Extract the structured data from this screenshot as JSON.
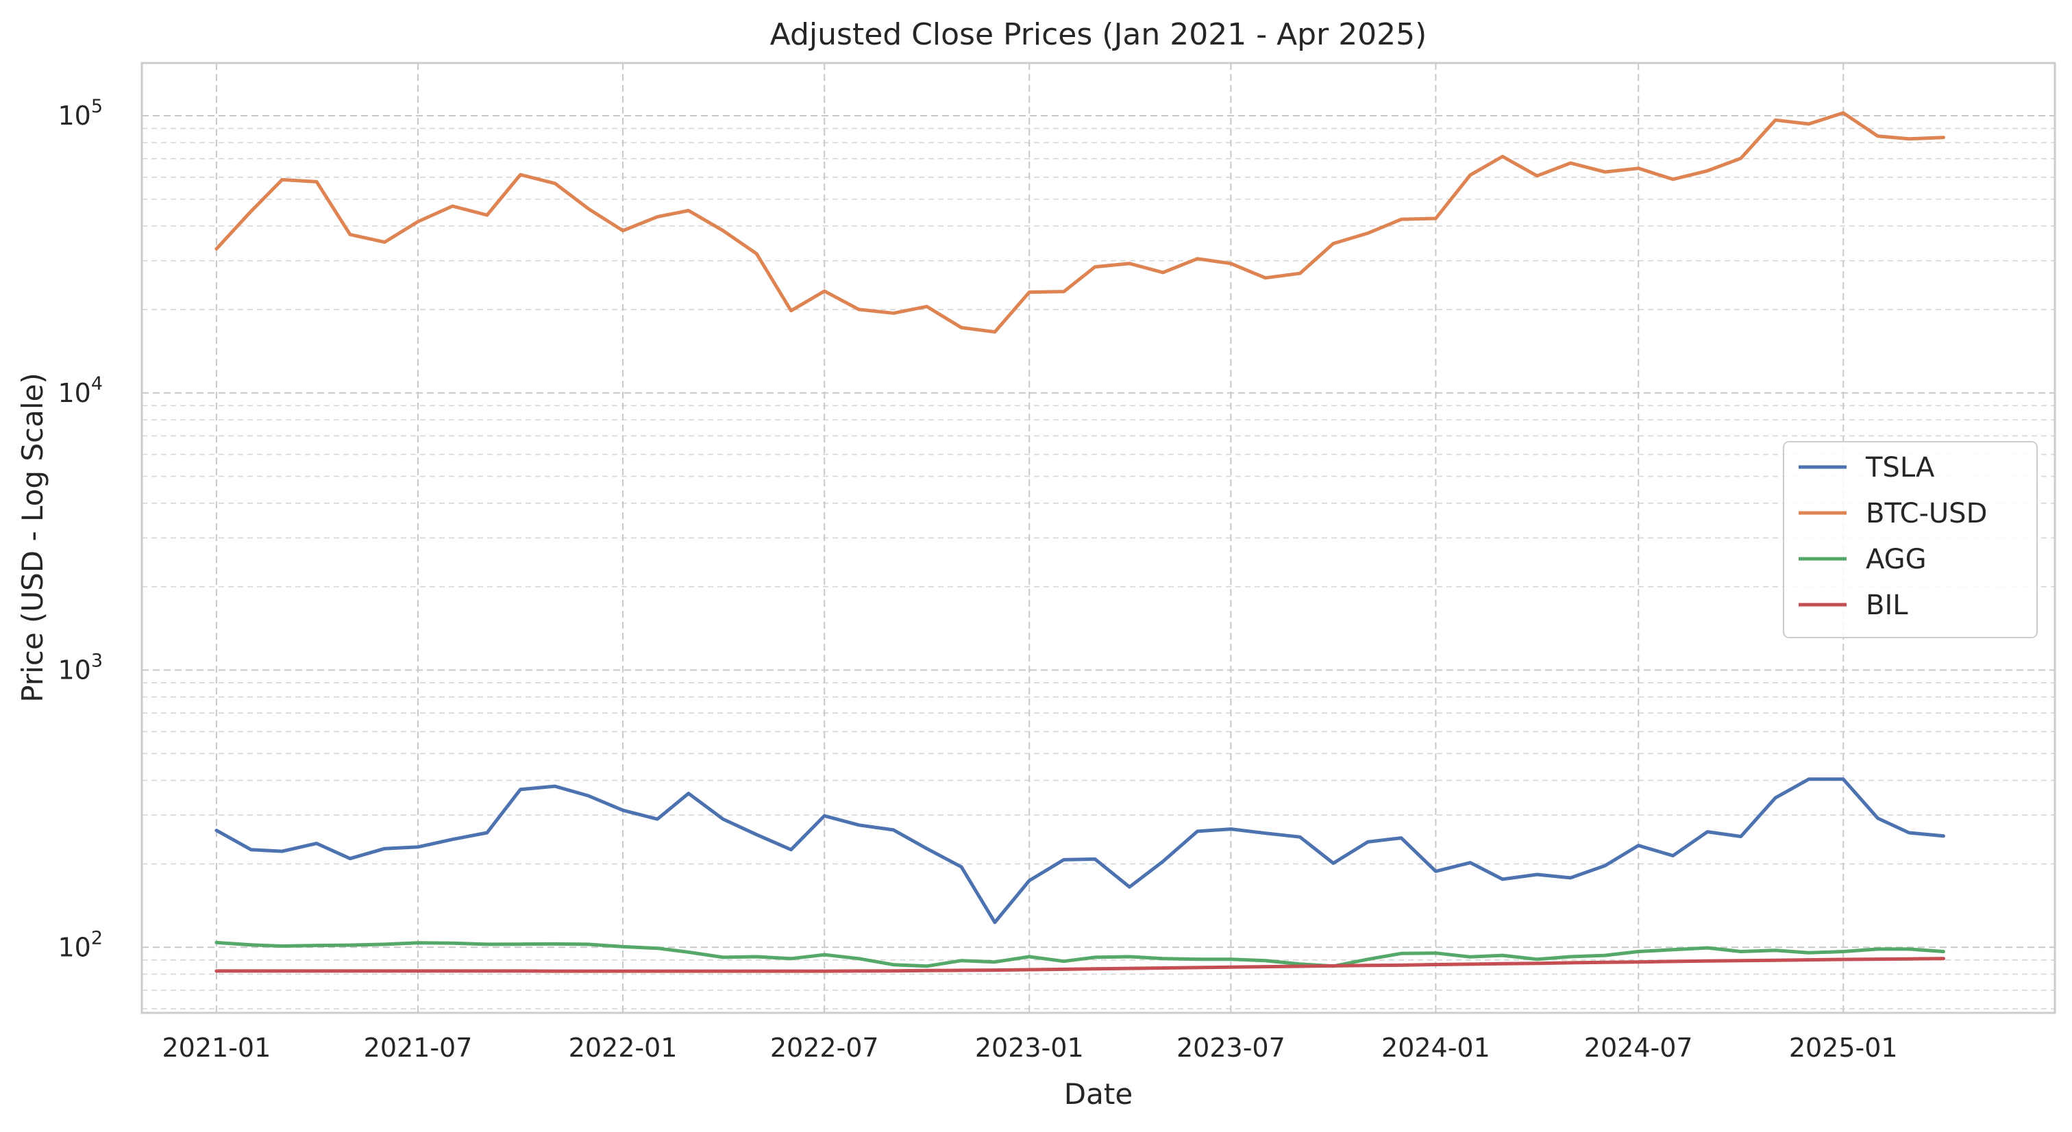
{
  "chart_data": {
    "type": "line",
    "title": "Adjusted Close Prices (Jan 2021 - Apr 2025)",
    "xlabel": "Date",
    "ylabel": "Price (USD - Log Scale)",
    "yscale": "log",
    "ylim": [
      58,
      155000
    ],
    "xlim": [
      "2020-10-26",
      "2025-07-10"
    ],
    "x_ticks": [
      "2021-01",
      "2021-07",
      "2022-01",
      "2022-07",
      "2023-01",
      "2023-07",
      "2024-01",
      "2024-07",
      "2025-01"
    ],
    "y_ticks": [
      {
        "value": 100,
        "base": "10",
        "exp": "2"
      },
      {
        "value": 1000,
        "base": "10",
        "exp": "3"
      },
      {
        "value": 10000,
        "base": "10",
        "exp": "4"
      },
      {
        "value": 100000,
        "base": "10",
        "exp": "5"
      }
    ],
    "grid": true,
    "legend_position": "center-right",
    "dates": [
      "2021-01-01",
      "2021-02-01",
      "2021-03-01",
      "2021-04-01",
      "2021-05-01",
      "2021-06-01",
      "2021-07-01",
      "2021-08-01",
      "2021-09-01",
      "2021-10-01",
      "2021-11-01",
      "2021-12-01",
      "2022-01-01",
      "2022-02-01",
      "2022-03-01",
      "2022-04-01",
      "2022-05-01",
      "2022-06-01",
      "2022-07-01",
      "2022-08-01",
      "2022-09-01",
      "2022-10-01",
      "2022-11-01",
      "2022-12-01",
      "2023-01-01",
      "2023-02-01",
      "2023-03-01",
      "2023-04-01",
      "2023-05-01",
      "2023-06-01",
      "2023-07-01",
      "2023-08-01",
      "2023-09-01",
      "2023-10-01",
      "2023-11-01",
      "2023-12-01",
      "2024-01-01",
      "2024-02-01",
      "2024-03-01",
      "2024-04-01",
      "2024-05-01",
      "2024-06-01",
      "2024-07-01",
      "2024-08-01",
      "2024-09-01",
      "2024-10-01",
      "2024-11-01",
      "2024-12-01",
      "2025-01-01",
      "2025-02-01",
      "2025-03-01",
      "2025-04-01"
    ],
    "series": [
      {
        "name": "TSLA",
        "color": "#4c72b0",
        "values": [
          264,
          225,
          222,
          237,
          209,
          227,
          230,
          245,
          259,
          371,
          381,
          352,
          312,
          290,
          359,
          290,
          255,
          225,
          298,
          276,
          265,
          227,
          195,
          123,
          174,
          207,
          208,
          165,
          204,
          262,
          267,
          258,
          250,
          201,
          240,
          248,
          188,
          202,
          176,
          183,
          178,
          197,
          233,
          214,
          261,
          251,
          346,
          404,
          404,
          292,
          259,
          252
        ]
      },
      {
        "name": "BTC-USD",
        "color": "#dd8452",
        "values": [
          33100,
          45200,
          58800,
          57800,
          37300,
          35000,
          41500,
          47200,
          43800,
          61300,
          57000,
          46200,
          38500,
          43200,
          45500,
          38500,
          31800,
          19800,
          23300,
          20000,
          19400,
          20500,
          17200,
          16600,
          23100,
          23200,
          28500,
          29300,
          27200,
          30500,
          29300,
          26000,
          27000,
          34600,
          37700,
          42300,
          42600,
          61100,
          71300,
          60700,
          67500,
          62700,
          64600,
          59000,
          63300,
          70200,
          96500,
          93400,
          102400,
          84400,
          82500,
          83500
        ]
      },
      {
        "name": "AGG",
        "color": "#55a868",
        "values": [
          104,
          102,
          101,
          101.5,
          101.8,
          102.5,
          103.8,
          103.5,
          102.5,
          102.6,
          102.8,
          102.5,
          100.5,
          99.2,
          96,
          92,
          92.5,
          91,
          94,
          91,
          86.5,
          85.5,
          89.5,
          88.5,
          92.5,
          89,
          92,
          92.5,
          91,
          90.5,
          90.5,
          89.5,
          87,
          85.5,
          90.5,
          95,
          95.3,
          92.3,
          93.5,
          90.5,
          92.5,
          93.5,
          96.5,
          98,
          99.5,
          96.5,
          97.5,
          95.5,
          96.5,
          98.5,
          98.5,
          96.5
        ]
      },
      {
        "name": "BIL",
        "color": "#c44e52",
        "values": [
          82.1,
          82.1,
          82.1,
          82.1,
          82.1,
          82.1,
          82.1,
          82.1,
          82.1,
          82.1,
          82.0,
          82.0,
          82.0,
          82.0,
          82.0,
          82.0,
          82.0,
          82.0,
          82.0,
          82.1,
          82.2,
          82.4,
          82.6,
          82.7,
          83.0,
          83.3,
          83.6,
          83.9,
          84.2,
          84.5,
          84.8,
          85.1,
          85.4,
          85.7,
          86.0,
          86.2,
          86.6,
          86.9,
          87.2,
          87.5,
          87.9,
          88.2,
          88.5,
          88.9,
          89.2,
          89.5,
          89.8,
          90.1,
          90.4,
          90.6,
          90.8,
          91.0
        ]
      }
    ]
  }
}
